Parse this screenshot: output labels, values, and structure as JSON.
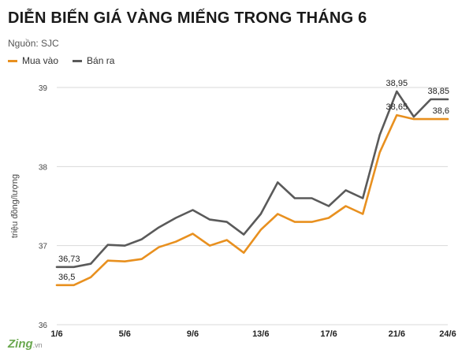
{
  "header": {
    "title": "DIỄN BIẾN GIÁ VÀNG MIẾNG TRONG THÁNG 6",
    "source": "Nguồn: SJC"
  },
  "legend": {
    "buy_label": "Mua vào",
    "sell_label": "Bán ra"
  },
  "watermark": {
    "brand": "Zing",
    "suffix": ".vn"
  },
  "colors": {
    "buy": "#e8901f",
    "sell": "#5a5a5a"
  },
  "chart_data": {
    "type": "line",
    "title": "DIỄN BIẾN GIÁ VÀNG MIẾNG TRONG THÁNG 6",
    "ylabel": "triệu đồng/lượng",
    "xlabel": "",
    "ylim": [
      36,
      39
    ],
    "yticks": [
      36,
      37,
      38,
      39
    ],
    "x": [
      1,
      2,
      3,
      4,
      5,
      6,
      7,
      8,
      9,
      10,
      11,
      12,
      13,
      14,
      15,
      16,
      17,
      18,
      19,
      20,
      21,
      22,
      23,
      24
    ],
    "xtick_labels": [
      {
        "day": 1,
        "label": "1/6"
      },
      {
        "day": 5,
        "label": "5/6"
      },
      {
        "day": 9,
        "label": "9/6"
      },
      {
        "day": 13,
        "label": "13/6"
      },
      {
        "day": 17,
        "label": "17/6"
      },
      {
        "day": 21,
        "label": "21/6"
      },
      {
        "day": 24,
        "label": "24/6"
      }
    ],
    "grid": true,
    "legend_position": "top-left",
    "series": [
      {
        "name": "Mua vào",
        "key": "buy",
        "values": [
          36.5,
          36.5,
          36.6,
          36.81,
          36.8,
          36.83,
          36.98,
          37.05,
          37.15,
          37.0,
          37.07,
          36.91,
          37.2,
          37.4,
          37.3,
          37.3,
          37.35,
          37.5,
          37.4,
          38.18,
          38.65,
          38.6,
          38.6,
          38.6
        ]
      },
      {
        "name": "Bán ra",
        "key": "sell",
        "values": [
          36.73,
          36.73,
          36.77,
          37.01,
          37.0,
          37.08,
          37.23,
          37.35,
          37.45,
          37.33,
          37.3,
          37.14,
          37.4,
          37.8,
          37.6,
          37.6,
          37.5,
          37.7,
          37.6,
          38.4,
          38.95,
          38.63,
          38.85,
          38.85
        ]
      }
    ],
    "annotations": [
      {
        "series": "sell",
        "day": 1,
        "text": "36,73",
        "place": "above"
      },
      {
        "series": "buy",
        "day": 1,
        "text": "36,5",
        "place": "above"
      },
      {
        "series": "sell",
        "day": 21,
        "text": "38,95",
        "place": "above"
      },
      {
        "series": "buy",
        "day": 21,
        "text": "38,65",
        "place": "above"
      },
      {
        "series": "sell",
        "day": 24,
        "text": "38,85",
        "place": "above"
      },
      {
        "series": "buy",
        "day": 24,
        "text": "38,6",
        "place": "above"
      }
    ]
  }
}
